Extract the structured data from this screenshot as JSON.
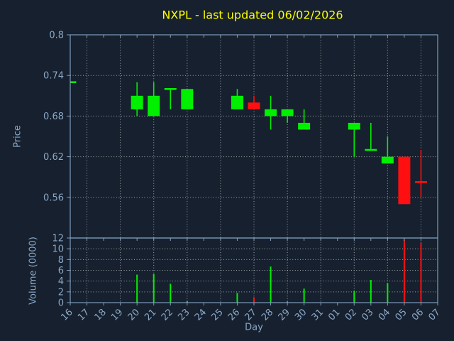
{
  "window": {
    "description": "matplotlib-style candlestick chart figure with volume subplot"
  },
  "colors": {
    "background": "#16202e",
    "spine": "#7e9cbe",
    "tick_label": "#8ca8c8",
    "grid": "#c8c8c8",
    "title": "#ffff00",
    "up": "#00f000",
    "down": "#ff0f0f"
  },
  "chart_data": {
    "type": "candlestick",
    "title": "NXPL - last updated 06/02/2026",
    "xlabel": "Day",
    "legend": "none",
    "grid": {
      "on": true,
      "style": "dotted",
      "vertical_gridline_every_n_days": 2
    },
    "x_labels": [
      "16",
      "17",
      "18",
      "19",
      "20",
      "21",
      "22",
      "23",
      "24",
      "25",
      "26",
      "27",
      "28",
      "29",
      "30",
      "31",
      "01",
      "02",
      "03",
      "04",
      "05",
      "06",
      "07"
    ],
    "x_label_rotation_deg": 45,
    "panels": [
      {
        "name": "price",
        "ylabel": "Price",
        "ylim": [
          0.5,
          0.8
        ],
        "yticks": [
          0.8,
          0.74,
          0.68,
          0.62,
          0.56
        ]
      },
      {
        "name": "volume",
        "ylabel": "Volume (0000)",
        "ylim": [
          0,
          12
        ],
        "yticks": [
          0,
          2,
          4,
          6,
          8,
          10,
          12
        ]
      }
    ],
    "candles": [
      {
        "day": "16",
        "i": 0,
        "open": 0.73,
        "high": 0.73,
        "low": 0.73,
        "close": 0.73,
        "volume": 0
      },
      {
        "day": "20",
        "i": 4,
        "open": 0.69,
        "high": 0.73,
        "low": 0.68,
        "close": 0.71,
        "volume": 5.2
      },
      {
        "day": "21",
        "i": 5,
        "open": 0.68,
        "high": 0.73,
        "low": 0.68,
        "close": 0.71,
        "volume": 5.3
      },
      {
        "day": "22",
        "i": 6,
        "open": 0.72,
        "high": 0.72,
        "low": 0.69,
        "close": 0.72,
        "volume": 3.5
      },
      {
        "day": "23",
        "i": 7,
        "open": 0.69,
        "high": 0.72,
        "low": 0.69,
        "close": 0.72,
        "volume": 0.3
      },
      {
        "day": "26",
        "i": 10,
        "open": 0.69,
        "high": 0.72,
        "low": 0.69,
        "close": 0.71,
        "volume": 1.8
      },
      {
        "day": "27",
        "i": 11,
        "open": 0.7,
        "high": 0.71,
        "low": 0.69,
        "close": 0.69,
        "volume": 1.0
      },
      {
        "day": "28",
        "i": 12,
        "open": 0.68,
        "high": 0.71,
        "low": 0.66,
        "close": 0.69,
        "volume": 6.7
      },
      {
        "day": "29",
        "i": 13,
        "open": 0.68,
        "high": 0.69,
        "low": 0.67,
        "close": 0.69,
        "volume": 0.2
      },
      {
        "day": "30",
        "i": 14,
        "open": 0.66,
        "high": 0.69,
        "low": 0.66,
        "close": 0.67,
        "volume": 2.6
      },
      {
        "day": "02",
        "i": 17,
        "open": 0.66,
        "high": 0.67,
        "low": 0.62,
        "close": 0.67,
        "volume": 2.2
      },
      {
        "day": "03",
        "i": 18,
        "open": 0.63,
        "high": 0.67,
        "low": 0.63,
        "close": 0.63,
        "volume": 4.2
      },
      {
        "day": "04",
        "i": 19,
        "open": 0.61,
        "high": 0.65,
        "low": 0.61,
        "close": 0.62,
        "volume": 3.6
      },
      {
        "day": "05",
        "i": 20,
        "open": 0.62,
        "high": 0.62,
        "low": 0.55,
        "close": 0.55,
        "volume": 11.7
      },
      {
        "day": "06",
        "i": 21,
        "open": 0.585,
        "high": 0.63,
        "low": 0.56,
        "close": 0.58,
        "volume": 11.1
      }
    ]
  }
}
